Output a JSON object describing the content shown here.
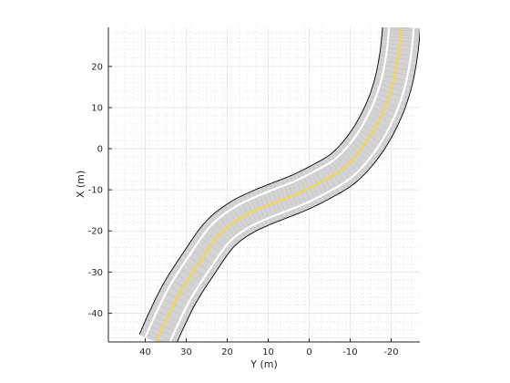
{
  "chart_data": {
    "type": "line",
    "title": "",
    "xlabel": "Y (m)",
    "ylabel": "X (m)",
    "xlim": [
      49,
      -27
    ],
    "ylim": [
      -47,
      29.5
    ],
    "x_axis_reversed": true,
    "xticks": [
      40,
      30,
      20,
      10,
      0,
      -10,
      -20
    ],
    "yticks": [
      20,
      10,
      0,
      -10,
      -20,
      -30,
      -40
    ],
    "grid": true,
    "minor_grid": true,
    "aspect": "equal",
    "road": {
      "surface_color": "#d3d3d3",
      "edge_color": "#000000",
      "lane_marking_color": "#ffffff",
      "center_line_color": "#f2d45c",
      "half_width": 4.6,
      "lane_marking_offset": 3.0,
      "center_line": [
        {
          "y": 37.2,
          "x": -47
        },
        {
          "y": 35.0,
          "x": -42
        },
        {
          "y": 31.5,
          "x": -35
        },
        {
          "y": 27.0,
          "x": -28
        },
        {
          "y": 22.0,
          "x": -21
        },
        {
          "y": 17.0,
          "x": -17
        },
        {
          "y": 12.0,
          "x": -14.5
        },
        {
          "y": 7.0,
          "x": -12.5
        },
        {
          "y": 2.0,
          "x": -10.5
        },
        {
          "y": -3.0,
          "x": -8
        },
        {
          "y": -8.0,
          "x": -5
        },
        {
          "y": -12.0,
          "x": -1
        },
        {
          "y": -15.5,
          "x": 4
        },
        {
          "y": -18.5,
          "x": 10
        },
        {
          "y": -20.5,
          "x": 16
        },
        {
          "y": -21.7,
          "x": 22
        },
        {
          "y": -22.3,
          "x": 27
        },
        {
          "y": -22.5,
          "x": 29.5
        }
      ]
    }
  }
}
